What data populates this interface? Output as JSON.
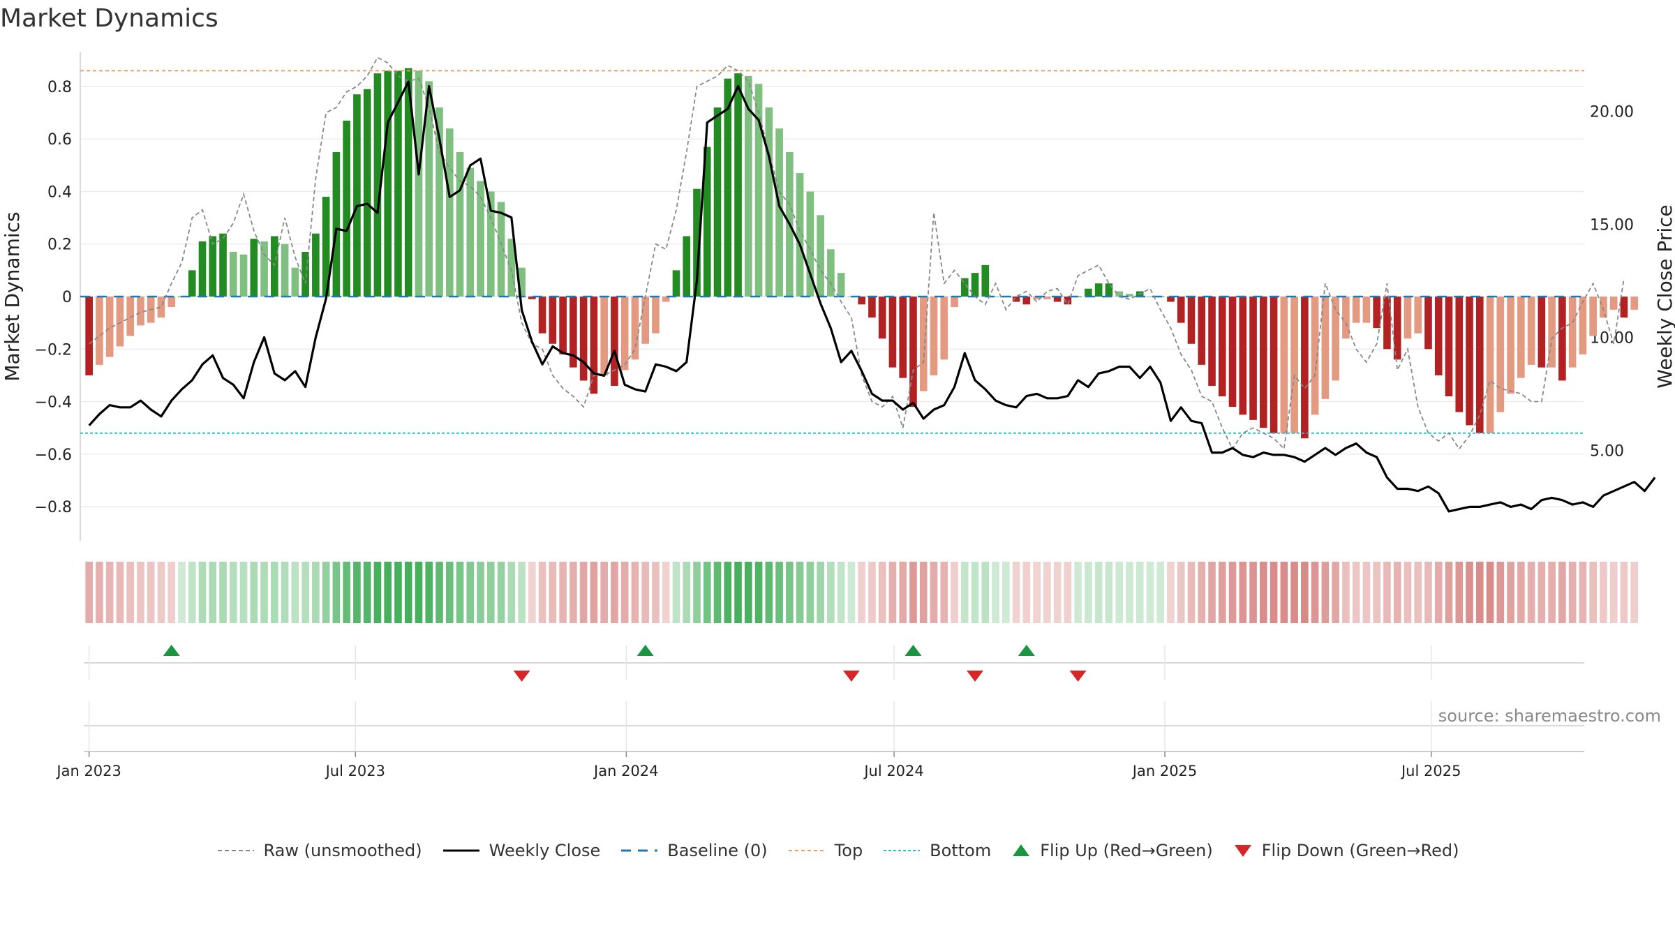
{
  "title": "Market Dynamics",
  "source": "source: sharemaestro.com",
  "colors": {
    "green_strong": "#228B22",
    "green_light": "#7FBF7F",
    "red_strong": "#B22222",
    "red_light": "#E39A80",
    "close_line": "#000000",
    "raw_line": "#888888",
    "baseline": "#1f77b4",
    "top": "#E6A25A",
    "bottom": "#2BC4C4",
    "flip_up": "#1a9641",
    "flip_down": "#d62728"
  },
  "chart_data": {
    "type": "bar",
    "title": "Market Dynamics",
    "ylabel": "Market Dynamics",
    "y2label": "Weekly Close Price",
    "ylim": [
      -0.93,
      0.93
    ],
    "y2lim": [
      1.0,
      22.6
    ],
    "yticks": [
      -0.8,
      -0.6,
      -0.4,
      -0.2,
      0,
      0.2,
      0.4,
      0.6,
      0.8
    ],
    "ytick_labels": [
      "−0.8",
      "−0.6",
      "−0.4",
      "−0.2",
      "0",
      "0.2",
      "0.4",
      "0.6",
      "0.8"
    ],
    "y2ticks": [
      5,
      10,
      15,
      20
    ],
    "y2tick_labels": [
      "5.00",
      "10.00",
      "15.00",
      "20.00"
    ],
    "xlim": [
      "2022-12-26",
      "2025-10-13"
    ],
    "xticks": [
      "2023-01-01",
      "2023-07-01",
      "2024-01-01",
      "2024-07-01",
      "2025-01-01",
      "2025-07-01"
    ],
    "xtick_labels": [
      "Jan 2023",
      "Jul 2023",
      "Jan 2024",
      "Jul 2024",
      "Jan 2025",
      "Jul 2025"
    ],
    "start_date": "2023-01-01",
    "grid": true,
    "legend_position": "bottom",
    "top_level": 0.86,
    "bottom_level": -0.52,
    "baseline": 0,
    "series": [
      {
        "name": "Market Dynamics",
        "kind": "bar",
        "values": [
          -0.3,
          -0.26,
          -0.23,
          -0.19,
          -0.15,
          -0.11,
          -0.1,
          -0.08,
          -0.04,
          0,
          0.1,
          0.21,
          0.23,
          0.24,
          0.17,
          0.16,
          0.22,
          0.21,
          0.23,
          0.2,
          0.11,
          0.17,
          0.24,
          0.38,
          0.55,
          0.67,
          0.77,
          0.79,
          0.85,
          0.86,
          0.86,
          0.87,
          0.86,
          0.82,
          0.72,
          0.64,
          0.55,
          0.49,
          0.44,
          0.4,
          0.36,
          0.22,
          0.11,
          -0.01,
          -0.14,
          -0.18,
          -0.22,
          -0.27,
          -0.32,
          -0.37,
          -0.3,
          -0.34,
          -0.28,
          -0.24,
          -0.18,
          -0.14,
          -0.02,
          0.1,
          0.23,
          0.41,
          0.57,
          0.72,
          0.83,
          0.85,
          0.84,
          0.81,
          0.72,
          0.64,
          0.55,
          0.47,
          0.4,
          0.31,
          0.18,
          0.09,
          0,
          -0.03,
          -0.08,
          -0.16,
          -0.27,
          -0.31,
          -0.42,
          -0.36,
          -0.3,
          -0.24,
          -0.04,
          0.07,
          0.09,
          0.12,
          0,
          0,
          -0.02,
          -0.03,
          -0.01,
          -0.01,
          -0.02,
          -0.03,
          0,
          0.03,
          0.05,
          0.05,
          0.02,
          0.01,
          0.02,
          0,
          0,
          -0.02,
          -0.1,
          -0.18,
          -0.26,
          -0.34,
          -0.38,
          -0.42,
          -0.45,
          -0.47,
          -0.5,
          -0.52,
          -0.52,
          -0.52,
          -0.54,
          -0.45,
          -0.39,
          -0.32,
          -0.16,
          -0.1,
          -0.1,
          -0.12,
          -0.2,
          -0.24,
          -0.16,
          -0.14,
          -0.2,
          -0.3,
          -0.38,
          -0.44,
          -0.49,
          -0.52,
          -0.52,
          -0.44,
          -0.37,
          -0.31,
          -0.26,
          -0.27,
          -0.27,
          -0.32,
          -0.27,
          -0.22,
          -0.15,
          -0.08,
          -0.05,
          -0.08,
          -0.05
        ]
      },
      {
        "name": "Weekly Close",
        "kind": "line",
        "values": [
          6.1,
          6.6,
          7.0,
          6.9,
          6.9,
          7.2,
          6.8,
          6.5,
          7.2,
          7.7,
          8.1,
          8.8,
          9.2,
          8.2,
          7.9,
          7.3,
          8.9,
          10.0,
          8.4,
          8.1,
          8.5,
          7.8,
          10.0,
          11.7,
          14.8,
          14.7,
          15.8,
          15.9,
          15.5,
          19.5,
          20.4,
          21.3,
          17.2,
          21.1,
          18.8,
          16.2,
          16.5,
          17.6,
          17.9,
          15.6,
          15.5,
          15.3,
          11.2,
          9.8,
          8.8,
          9.6,
          9.3,
          9.2,
          8.9,
          8.4,
          8.3,
          9.4,
          7.9,
          7.7,
          7.6,
          8.8,
          8.7,
          8.5,
          8.9,
          12.5,
          19.5,
          19.8,
          20.1,
          21.1,
          20.1,
          19.6,
          18.0,
          15.8,
          15.0,
          14.1,
          12.8,
          11.5,
          10.4,
          8.9,
          9.4,
          8.5,
          7.5,
          7.2,
          7.2,
          6.8,
          7.1,
          6.4,
          6.8,
          7.0,
          7.8,
          9.3,
          8.1,
          7.7,
          7.2,
          7.0,
          6.9,
          7.4,
          7.5,
          7.3,
          7.3,
          7.4,
          8.1,
          7.8,
          8.4,
          8.5,
          8.7,
          8.7,
          8.2,
          8.7,
          8.0,
          6.3,
          6.9,
          6.3,
          6.2,
          4.9,
          4.9,
          5.1,
          4.8,
          4.7,
          4.9,
          4.8,
          4.8,
          4.7,
          4.5,
          4.8,
          5.1,
          4.8,
          5.1,
          5.3,
          4.9,
          4.7,
          3.8,
          3.3,
          3.3,
          3.2,
          3.4,
          3.1,
          2.3,
          2.4,
          2.5,
          2.5,
          2.6,
          2.7,
          2.5,
          2.6,
          2.4,
          2.8,
          2.9,
          2.8,
          2.6,
          2.7,
          2.5,
          3.0,
          3.2,
          3.4,
          3.6,
          3.2,
          3.8
        ]
      },
      {
        "name": "Raw (unsmoothed)",
        "kind": "line",
        "values": [
          -0.18,
          -0.15,
          -0.12,
          -0.1,
          -0.08,
          -0.06,
          -0.05,
          -0.04,
          0.05,
          0.13,
          0.3,
          0.33,
          0.2,
          0.22,
          0.28,
          0.39,
          0.25,
          0.16,
          0.12,
          0.3,
          0.15,
          0.05,
          0.45,
          0.7,
          0.72,
          0.78,
          0.8,
          0.84,
          0.91,
          0.89,
          0.84,
          0.82,
          0.83,
          0.72,
          0.55,
          0.49,
          0.44,
          0.42,
          0.38,
          0.3,
          0.2,
          0.1,
          -0.1,
          -0.18,
          -0.2,
          -0.3,
          -0.35,
          -0.38,
          -0.42,
          -0.3,
          -0.3,
          -0.28,
          -0.26,
          -0.2,
          0,
          0.2,
          0.18,
          0.33,
          0.55,
          0.8,
          0.82,
          0.84,
          0.88,
          0.86,
          0.82,
          0.7,
          0.55,
          0.4,
          0.35,
          0.25,
          0.18,
          0.1,
          0.05,
          -0.02,
          -0.08,
          -0.3,
          -0.4,
          -0.42,
          -0.38,
          -0.5,
          -0.28,
          -0.25,
          0.32,
          0.05,
          0.1,
          0.05,
          0,
          -0.03,
          0.05,
          -0.05,
          0,
          0.02,
          -0.02,
          0.02,
          0.03,
          -0.03,
          0.08,
          0.1,
          0.12,
          0.05,
          0,
          -0.01,
          0.01,
          0.03,
          -0.05,
          -0.12,
          -0.22,
          -0.28,
          -0.38,
          -0.4,
          -0.5,
          -0.58,
          -0.52,
          -0.5,
          -0.52,
          -0.54,
          -0.58,
          -0.3,
          -0.35,
          -0.3,
          0.05,
          -0.05,
          -0.1,
          -0.2,
          -0.25,
          -0.18,
          0.05,
          -0.28,
          -0.2,
          -0.42,
          -0.52,
          -0.55,
          -0.52,
          -0.58,
          -0.53,
          -0.45,
          -0.32,
          -0.35,
          -0.36,
          -0.37,
          -0.4,
          -0.4,
          -0.16,
          -0.12,
          -0.1,
          -0.02,
          0.05,
          -0.05,
          -0.18,
          0.07
        ]
      },
      {
        "name": "Baseline (0)",
        "kind": "hline",
        "value": 0
      },
      {
        "name": "Top",
        "kind": "hline",
        "value": 0.86
      },
      {
        "name": "Bottom",
        "kind": "hline",
        "value": -0.52
      },
      {
        "name": "Flip Up (Red→Green)",
        "kind": "marker",
        "dates": [
          "2023-02-26",
          "2024-01-14",
          "2024-07-14",
          "2024-09-29"
        ]
      },
      {
        "name": "Flip Down (Green→Red)",
        "kind": "marker",
        "dates": [
          "2023-10-22",
          "2024-06-02",
          "2024-08-25",
          "2024-11-03"
        ]
      }
    ]
  },
  "legend": [
    {
      "label": "Raw (unsmoothed)",
      "icon": "dashed-gray-line"
    },
    {
      "label": "Weekly Close",
      "icon": "solid-black-line"
    },
    {
      "label": "Baseline (0)",
      "icon": "dashed-blue-line"
    },
    {
      "label": "Top",
      "icon": "dashed-orange-line"
    },
    {
      "label": "Bottom",
      "icon": "dotted-teal-line"
    },
    {
      "label": "Flip Up (Red→Green)",
      "icon": "triangle-up-green"
    },
    {
      "label": "Flip Down (Green→Red)",
      "icon": "triangle-down-red"
    }
  ]
}
